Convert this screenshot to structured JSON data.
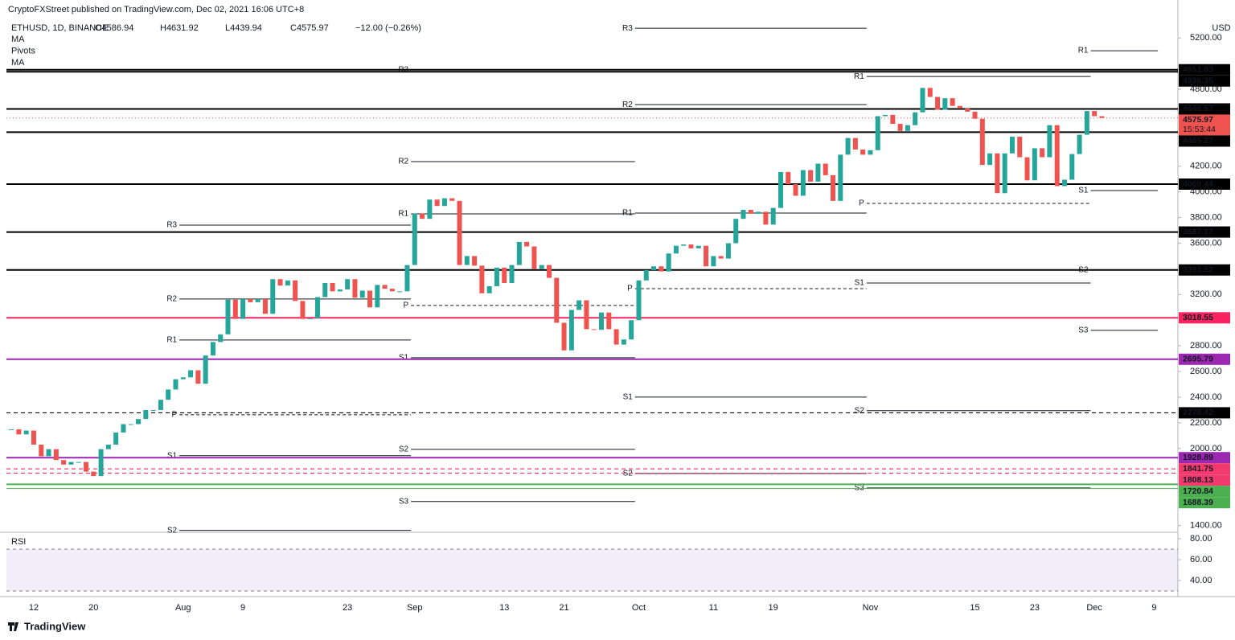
{
  "header": {
    "publisher": "CryptoFXStreet published on TradingView.com, Dec 02, 2021 16:06 UTC+8",
    "symbol": "ETHUSD, 1D, BINANCE",
    "ohlc": [
      "O4586.94",
      "H4631.92",
      "L4439.94",
      "C4575.97"
    ],
    "change": "−12.00 (−0.26%)",
    "indicators": [
      "MA",
      "Pivots",
      "MA"
    ],
    "currency": "USD",
    "countdown": "15:53:44",
    "logo": "TradingView"
  },
  "chart_data": {
    "type": "candlestick",
    "categories": [
      null,
      null,
      null,
      "12",
      null,
      null,
      null,
      null,
      null,
      null,
      null,
      "20",
      null,
      null,
      null,
      null,
      null,
      null,
      null,
      null,
      null,
      null,
      null,
      "Aug",
      null,
      null,
      null,
      null,
      null,
      null,
      null,
      "9",
      null,
      null,
      null,
      null,
      null,
      null,
      null,
      null,
      null,
      null,
      null,
      null,
      null,
      "23",
      null,
      null,
      null,
      null,
      null,
      null,
      null,
      null,
      "Sep",
      null,
      null,
      null,
      null,
      null,
      null,
      null,
      null,
      null,
      null,
      null,
      "13",
      null,
      null,
      null,
      null,
      null,
      null,
      null,
      "21",
      null,
      null,
      null,
      null,
      null,
      null,
      null,
      null,
      null,
      "Oct",
      null,
      null,
      null,
      null,
      null,
      null,
      null,
      null,
      null,
      "11",
      null,
      null,
      null,
      null,
      null,
      null,
      null,
      "19",
      null,
      null,
      null,
      null,
      null,
      null,
      null,
      null,
      null,
      null,
      null,
      null,
      "Nov",
      null,
      null,
      null,
      null,
      null,
      null,
      null,
      null,
      null,
      null,
      null,
      null,
      null,
      "15",
      null,
      null,
      null,
      null,
      null,
      null,
      null,
      "23",
      null,
      null,
      null,
      null,
      null,
      null,
      null,
      "Dec",
      null,
      null,
      null,
      null,
      null,
      null,
      null,
      "9"
    ],
    "close": [
      2150,
      2110,
      2140,
      2030,
      1940,
      1995,
      1910,
      1875,
      1895,
      1895,
      1820,
      1785,
      1995,
      2030,
      2125,
      2190,
      2190,
      2230,
      2300,
      2300,
      2380,
      2460,
      2540,
      2555,
      2610,
      2505,
      2725,
      2830,
      2890,
      3160,
      3010,
      3165,
      3140,
      3165,
      3050,
      3320,
      3270,
      3310,
      3150,
      3010,
      3015,
      3180,
      3290,
      3225,
      3240,
      3320,
      3175,
      3230,
      3100,
      3275,
      3245,
      3225,
      3225,
      3430,
      3830,
      3790,
      3940,
      3890,
      3950,
      3930,
      3430,
      3500,
      3425,
      3210,
      3265,
      3410,
      3290,
      3430,
      3610,
      3575,
      3400,
      3430,
      3330,
      2980,
      2765,
      3080,
      3155,
      2930,
      2925,
      3060,
      2930,
      2810,
      2850,
      3000,
      3310,
      3390,
      3420,
      3380,
      3520,
      3580,
      3590,
      3560,
      3580,
      3420,
      3500,
      3480,
      3600,
      3790,
      3860,
      3830,
      3845,
      3745,
      3875,
      4155,
      4060,
      3970,
      4170,
      4080,
      4220,
      4130,
      3930,
      4290,
      4420,
      4330,
      4290,
      4325,
      4590,
      4600,
      4530,
      4475,
      4520,
      4620,
      4810,
      4740,
      4640,
      4730,
      4670,
      4650,
      4625,
      4570,
      4210,
      4300,
      3990,
      4300,
      4430,
      4270,
      4090,
      4340,
      4270,
      4520,
      4045,
      4095,
      4295,
      4445,
      4630,
      4590,
      4575.97,
      null,
      null,
      null,
      null,
      null,
      null,
      null
    ],
    "up_color": "#26a69a",
    "down_color": "#ef5350",
    "ylim": [
      1360,
      5370
    ],
    "yticks": [
      {
        "value": 1400,
        "label": "1400.00"
      },
      {
        "value": 2000,
        "label": "2000.00"
      },
      {
        "value": 2200,
        "label": "2200.00"
      },
      {
        "value": 2400,
        "label": "2400.00"
      },
      {
        "value": 2600,
        "label": "2600.00"
      },
      {
        "value": 2800,
        "label": "2800.00"
      },
      {
        "value": 3200,
        "label": "3200.00"
      },
      {
        "value": 3600,
        "label": "3600.00"
      },
      {
        "value": 3800,
        "label": "3800.00"
      },
      {
        "value": 4000,
        "label": "4000.00"
      },
      {
        "value": 4200,
        "label": "4200.00"
      },
      {
        "value": 4800,
        "label": "4800.00"
      },
      {
        "value": 5200,
        "label": "5200.00"
      }
    ],
    "levels": [
      {
        "value": 4951.83,
        "color": "#000000",
        "style": "solid"
      },
      {
        "value": 4936.35,
        "color": "#000000",
        "style": "solid"
      },
      {
        "value": 4646.57,
        "color": "#000000",
        "style": "solid"
      },
      {
        "value": 4575.97,
        "color": "#ef5350",
        "style": "dotted"
      },
      {
        "value": 4465.27,
        "color": "#000000",
        "style": "solid"
      },
      {
        "value": 4060.44,
        "color": "#000000",
        "style": "solid"
      },
      {
        "value": 3687.17,
        "color": "#000000",
        "style": "solid"
      },
      {
        "value": 3391.52,
        "color": "#000000",
        "style": "solid"
      },
      {
        "value": 3018.55,
        "color": "#f7245f",
        "style": "solid"
      },
      {
        "value": 2695.79,
        "color": "#9c27b0",
        "style": "solid"
      },
      {
        "value": 2278.42,
        "color": "#000000",
        "style": "dashed"
      },
      {
        "value": 1928.89,
        "color": "#9c27b0",
        "style": "solid"
      },
      {
        "value": 1841.75,
        "color": "#f23a6e",
        "style": "dashed"
      },
      {
        "value": 1808.13,
        "color": "#f23a6e",
        "style": "dashed"
      },
      {
        "value": 1720.84,
        "color": "#4caf50",
        "style": "solid"
      },
      {
        "value": 1688.39,
        "color": "#4caf50",
        "style": "thin"
      }
    ],
    "pivots": [
      {
        "month": "Aug",
        "levels": [
          {
            "name": "R3",
            "value": 3741
          },
          {
            "name": "R2",
            "value": 3165
          },
          {
            "name": "R1",
            "value": 2846
          },
          {
            "name": "P",
            "value": 2263
          },
          {
            "name": "S1",
            "value": 1944
          },
          {
            "name": "S2",
            "value": 1362
          }
        ]
      },
      {
        "month": "Sep",
        "levels": [
          {
            "name": "R3",
            "value": 4950
          },
          {
            "name": "R2",
            "value": 4236
          },
          {
            "name": "R1",
            "value": 3829
          },
          {
            "name": "P",
            "value": 3115
          },
          {
            "name": "S1",
            "value": 2708
          },
          {
            "name": "S2",
            "value": 1994
          },
          {
            "name": "S3",
            "value": 1587
          }
        ]
      },
      {
        "month": "Oct",
        "levels": [
          {
            "name": "R3",
            "value": 5275
          },
          {
            "name": "R2",
            "value": 4680
          },
          {
            "name": "R1",
            "value": 3835
          },
          {
            "name": "P",
            "value": 3246
          },
          {
            "name": "S1",
            "value": 2401
          },
          {
            "name": "S2",
            "value": 1806
          }
        ]
      },
      {
        "month": "Nov",
        "levels": [
          {
            "name": "R1",
            "value": 4899
          },
          {
            "name": "P",
            "value": 3910
          },
          {
            "name": "S1",
            "value": 3290
          },
          {
            "name": "S2",
            "value": 2295
          },
          {
            "name": "S3",
            "value": 1693
          }
        ]
      },
      {
        "month": "Dec",
        "levels": [
          {
            "name": "R1",
            "value": 5100
          },
          {
            "name": "S1",
            "value": 4010
          },
          {
            "name": "S2",
            "value": 3390
          },
          {
            "name": "S3",
            "value": 2921
          }
        ]
      }
    ]
  },
  "rsi": {
    "title": "RSI",
    "ylim": [
      25,
      85
    ],
    "yticks": [
      {
        "value": 40,
        "label": "40.00"
      },
      {
        "value": 60,
        "label": "60.00"
      },
      {
        "value": 80,
        "label": "80.00"
      }
    ],
    "bands": [
      70,
      30
    ]
  }
}
